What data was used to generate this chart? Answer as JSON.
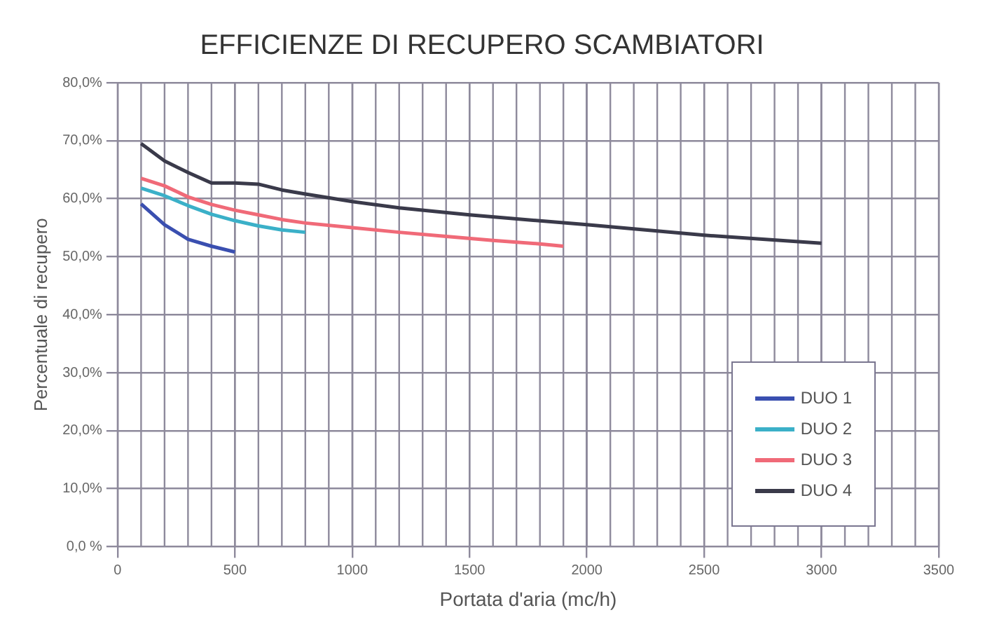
{
  "chart_data": {
    "type": "line",
    "title": "EFFICIENZE DI RECUPERO SCAMBIATORI",
    "xlabel": "Portata d'aria (mc/h)",
    "ylabel": "Percentuale di recupero",
    "xlim": [
      0,
      3500
    ],
    "xticks": [
      0,
      500,
      1000,
      1500,
      2000,
      2500,
      3000,
      3500
    ],
    "ylim": [
      0,
      80
    ],
    "yticks": [
      {
        "value": 0,
        "label": "0,0 %"
      },
      {
        "value": 10,
        "label": "10,0%"
      },
      {
        "value": 20,
        "label": "20,0%"
      },
      {
        "value": 30,
        "label": "30,0%"
      },
      {
        "value": 40,
        "label": "40,0%"
      },
      {
        "value": 50,
        "label": "50,0%"
      },
      {
        "value": 60,
        "label": "60,0%"
      },
      {
        "value": 70,
        "label": "70,0%"
      },
      {
        "value": 80,
        "label": "80,0%"
      }
    ],
    "grid": true,
    "legend": "bottom right",
    "marker": "none",
    "line_style": "solid",
    "series": [
      {
        "name": "DUO 1",
        "color": "#3a4fb0",
        "x": [
          100,
          200,
          300,
          400,
          500
        ],
        "values": [
          59.1,
          55.5,
          53,
          51.8,
          50.8
        ]
      },
      {
        "name": "DUO 2",
        "color": "#3bb0c8",
        "x": [
          100,
          200,
          300,
          400,
          500,
          600,
          700,
          800
        ],
        "values": [
          61.8,
          60.5,
          58.8,
          57.3,
          56.2,
          55.3,
          54.6,
          54.2
        ]
      },
      {
        "name": "DUO 3",
        "color": "#f06a78",
        "x": [
          100,
          200,
          300,
          400,
          500,
          600,
          700,
          800,
          1000,
          1200,
          1400,
          1600,
          1800,
          1900
        ],
        "values": [
          63.5,
          62.2,
          60.3,
          59,
          58,
          57.2,
          56.4,
          55.8,
          55,
          54.2,
          53.5,
          52.8,
          52.2,
          51.8
        ]
      },
      {
        "name": "DUO 4",
        "color": "#3a3a4a",
        "x": [
          100,
          200,
          300,
          400,
          500,
          600,
          700,
          800,
          1000,
          1200,
          1500,
          2000,
          2500,
          3000
        ],
        "values": [
          69.5,
          66.5,
          64.5,
          62.7,
          62.7,
          62.5,
          61.5,
          60.8,
          59.5,
          58.4,
          57.2,
          55.5,
          53.7,
          52.3
        ]
      }
    ]
  }
}
